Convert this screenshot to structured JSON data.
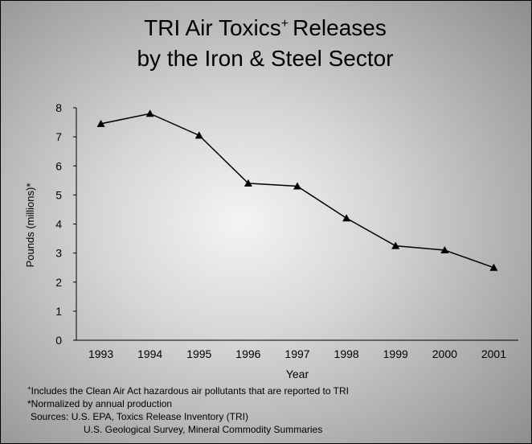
{
  "chart_data": {
    "type": "line",
    "title": "TRI Air Toxics",
    "title_mark": "+",
    "title_rest": "Releases",
    "subtitle": "by the Iron & Steel Sector",
    "x_label": "Year",
    "y_label": "Pounds (millions)*",
    "categories": [
      "1993",
      "1994",
      "1995",
      "1996",
      "1997",
      "1998",
      "1999",
      "2000",
      "2001"
    ],
    "values": [
      7.45,
      7.8,
      7.05,
      5.4,
      5.3,
      4.2,
      3.25,
      3.1,
      2.5
    ],
    "color": "#000000",
    "ylim": [
      0,
      8
    ],
    "yticks": [
      0,
      1,
      2,
      3,
      4,
      5,
      6,
      7,
      8
    ],
    "footnote_mark": "+",
    "notes": [
      "Includes the Clean Air Act hazardous air pollutants that are reported to TRI",
      "*Normalized by annual production",
      "Sources: U.S. EPA, Toxics Release Inventory (TRI)",
      "U.S. Geological Survey, Mineral Commodity Summaries"
    ]
  }
}
